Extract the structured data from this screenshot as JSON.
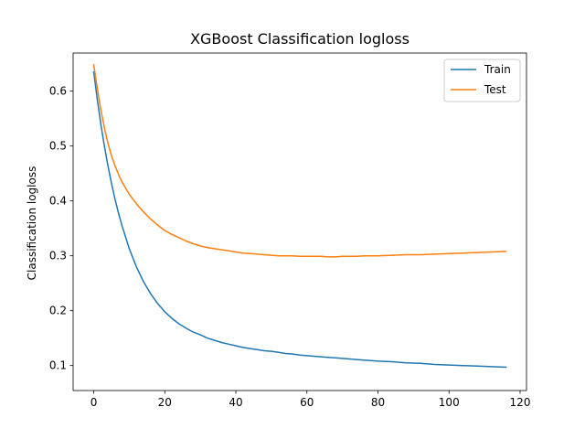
{
  "chart_data": {
    "type": "line",
    "title": "XGBoost Classification logloss",
    "xlabel": "",
    "ylabel": "Classification logloss",
    "xlim": [
      -5.8,
      121.8
    ],
    "ylim": [
      0.0545,
      0.6695
    ],
    "xticks": [
      0,
      20,
      40,
      60,
      80,
      100,
      120
    ],
    "yticks": [
      0.1,
      0.2,
      0.3,
      0.4,
      0.5,
      0.6
    ],
    "grid": false,
    "legend_position": "top-right",
    "series": [
      {
        "name": "Train",
        "color": "#1f77b4",
        "x": [
          0,
          1,
          2,
          3,
          4,
          5,
          6,
          7,
          8,
          10,
          12,
          14,
          16,
          18,
          20,
          22,
          24,
          26,
          28,
          30,
          32,
          34,
          36,
          38,
          40,
          42,
          44,
          46,
          48,
          50,
          52,
          54,
          56,
          58,
          60,
          62,
          64,
          66,
          68,
          70,
          72,
          74,
          76,
          78,
          80,
          84,
          88,
          92,
          96,
          100,
          104,
          108,
          112,
          116
        ],
        "y": [
          0.635,
          0.585,
          0.54,
          0.5,
          0.464,
          0.432,
          0.403,
          0.377,
          0.354,
          0.313,
          0.28,
          0.253,
          0.231,
          0.213,
          0.198,
          0.186,
          0.176,
          0.168,
          0.161,
          0.156,
          0.15,
          0.146,
          0.142,
          0.139,
          0.136,
          0.133,
          0.131,
          0.129,
          0.127,
          0.126,
          0.124,
          0.122,
          0.121,
          0.119,
          0.118,
          0.117,
          0.116,
          0.115,
          0.114,
          0.113,
          0.112,
          0.111,
          0.11,
          0.109,
          0.108,
          0.107,
          0.105,
          0.104,
          0.102,
          0.101,
          0.1,
          0.099,
          0.098,
          0.097
        ]
      },
      {
        "name": "Test",
        "color": "#ff7f0e",
        "x": [
          0,
          1,
          2,
          3,
          4,
          5,
          6,
          7,
          8,
          10,
          12,
          14,
          16,
          18,
          20,
          22,
          24,
          26,
          28,
          30,
          32,
          34,
          36,
          38,
          40,
          42,
          44,
          46,
          48,
          50,
          52,
          54,
          56,
          58,
          60,
          62,
          64,
          66,
          68,
          70,
          72,
          74,
          76,
          78,
          80,
          84,
          88,
          92,
          96,
          100,
          104,
          108,
          112,
          116
        ],
        "y": [
          0.648,
          0.605,
          0.566,
          0.533,
          0.505,
          0.482,
          0.464,
          0.448,
          0.434,
          0.412,
          0.395,
          0.38,
          0.367,
          0.356,
          0.346,
          0.339,
          0.333,
          0.327,
          0.322,
          0.318,
          0.315,
          0.313,
          0.311,
          0.309,
          0.307,
          0.305,
          0.304,
          0.303,
          0.302,
          0.301,
          0.3,
          0.3,
          0.3,
          0.299,
          0.299,
          0.299,
          0.299,
          0.298,
          0.298,
          0.299,
          0.299,
          0.299,
          0.3,
          0.3,
          0.3,
          0.301,
          0.302,
          0.302,
          0.303,
          0.304,
          0.305,
          0.306,
          0.307,
          0.308
        ]
      }
    ]
  }
}
